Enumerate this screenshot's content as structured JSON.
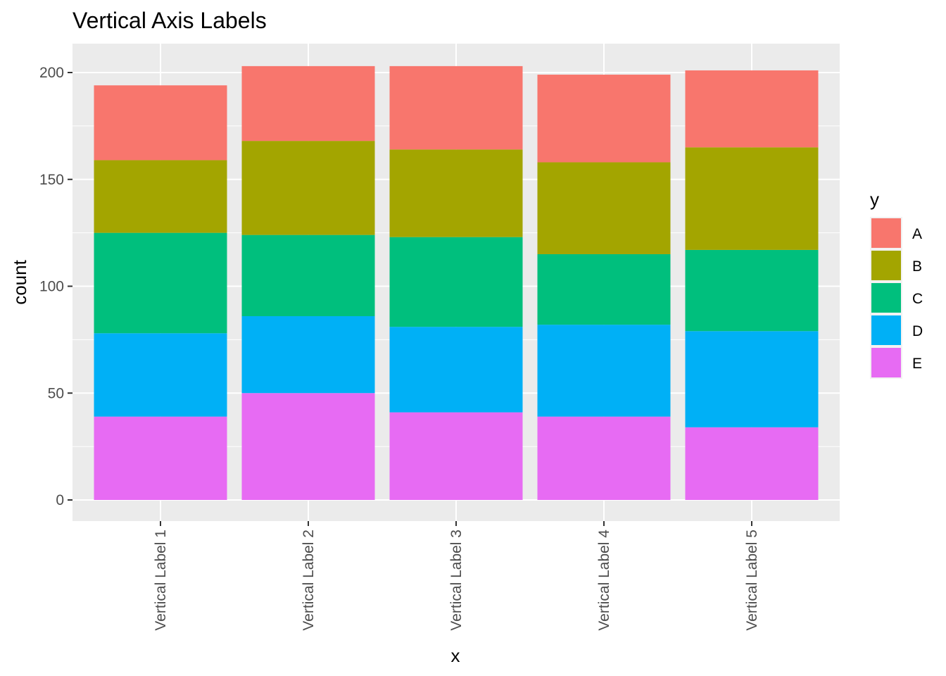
{
  "chart_data": {
    "type": "bar",
    "stacked": true,
    "title": "Vertical Axis Labels",
    "xlabel": "x",
    "ylabel": "count",
    "ylim": [
      0,
      210
    ],
    "yticks": [
      0,
      50,
      100,
      150,
      200
    ],
    "categories": [
      "Vertical Label 1",
      "Vertical Label 2",
      "Vertical Label 3",
      "Vertical Label 4",
      "Vertical Label 5"
    ],
    "series": [
      {
        "name": "E",
        "color": "#E76BF3",
        "values": [
          39,
          50,
          41,
          39,
          34
        ]
      },
      {
        "name": "D",
        "color": "#00B0F6",
        "values": [
          39,
          36,
          40,
          43,
          45
        ]
      },
      {
        "name": "C",
        "color": "#00BF7D",
        "values": [
          47,
          38,
          42,
          33,
          38
        ]
      },
      {
        "name": "B",
        "color": "#A3A500",
        "values": [
          34,
          44,
          41,
          43,
          48
        ]
      },
      {
        "name": "A",
        "color": "#F8766D",
        "values": [
          35,
          35,
          39,
          41,
          36
        ]
      }
    ],
    "legend": {
      "title": "y",
      "position": "right",
      "order": [
        "A",
        "B",
        "C",
        "D",
        "E"
      ]
    },
    "grid": true,
    "panel_background": "#EBEBEB"
  }
}
